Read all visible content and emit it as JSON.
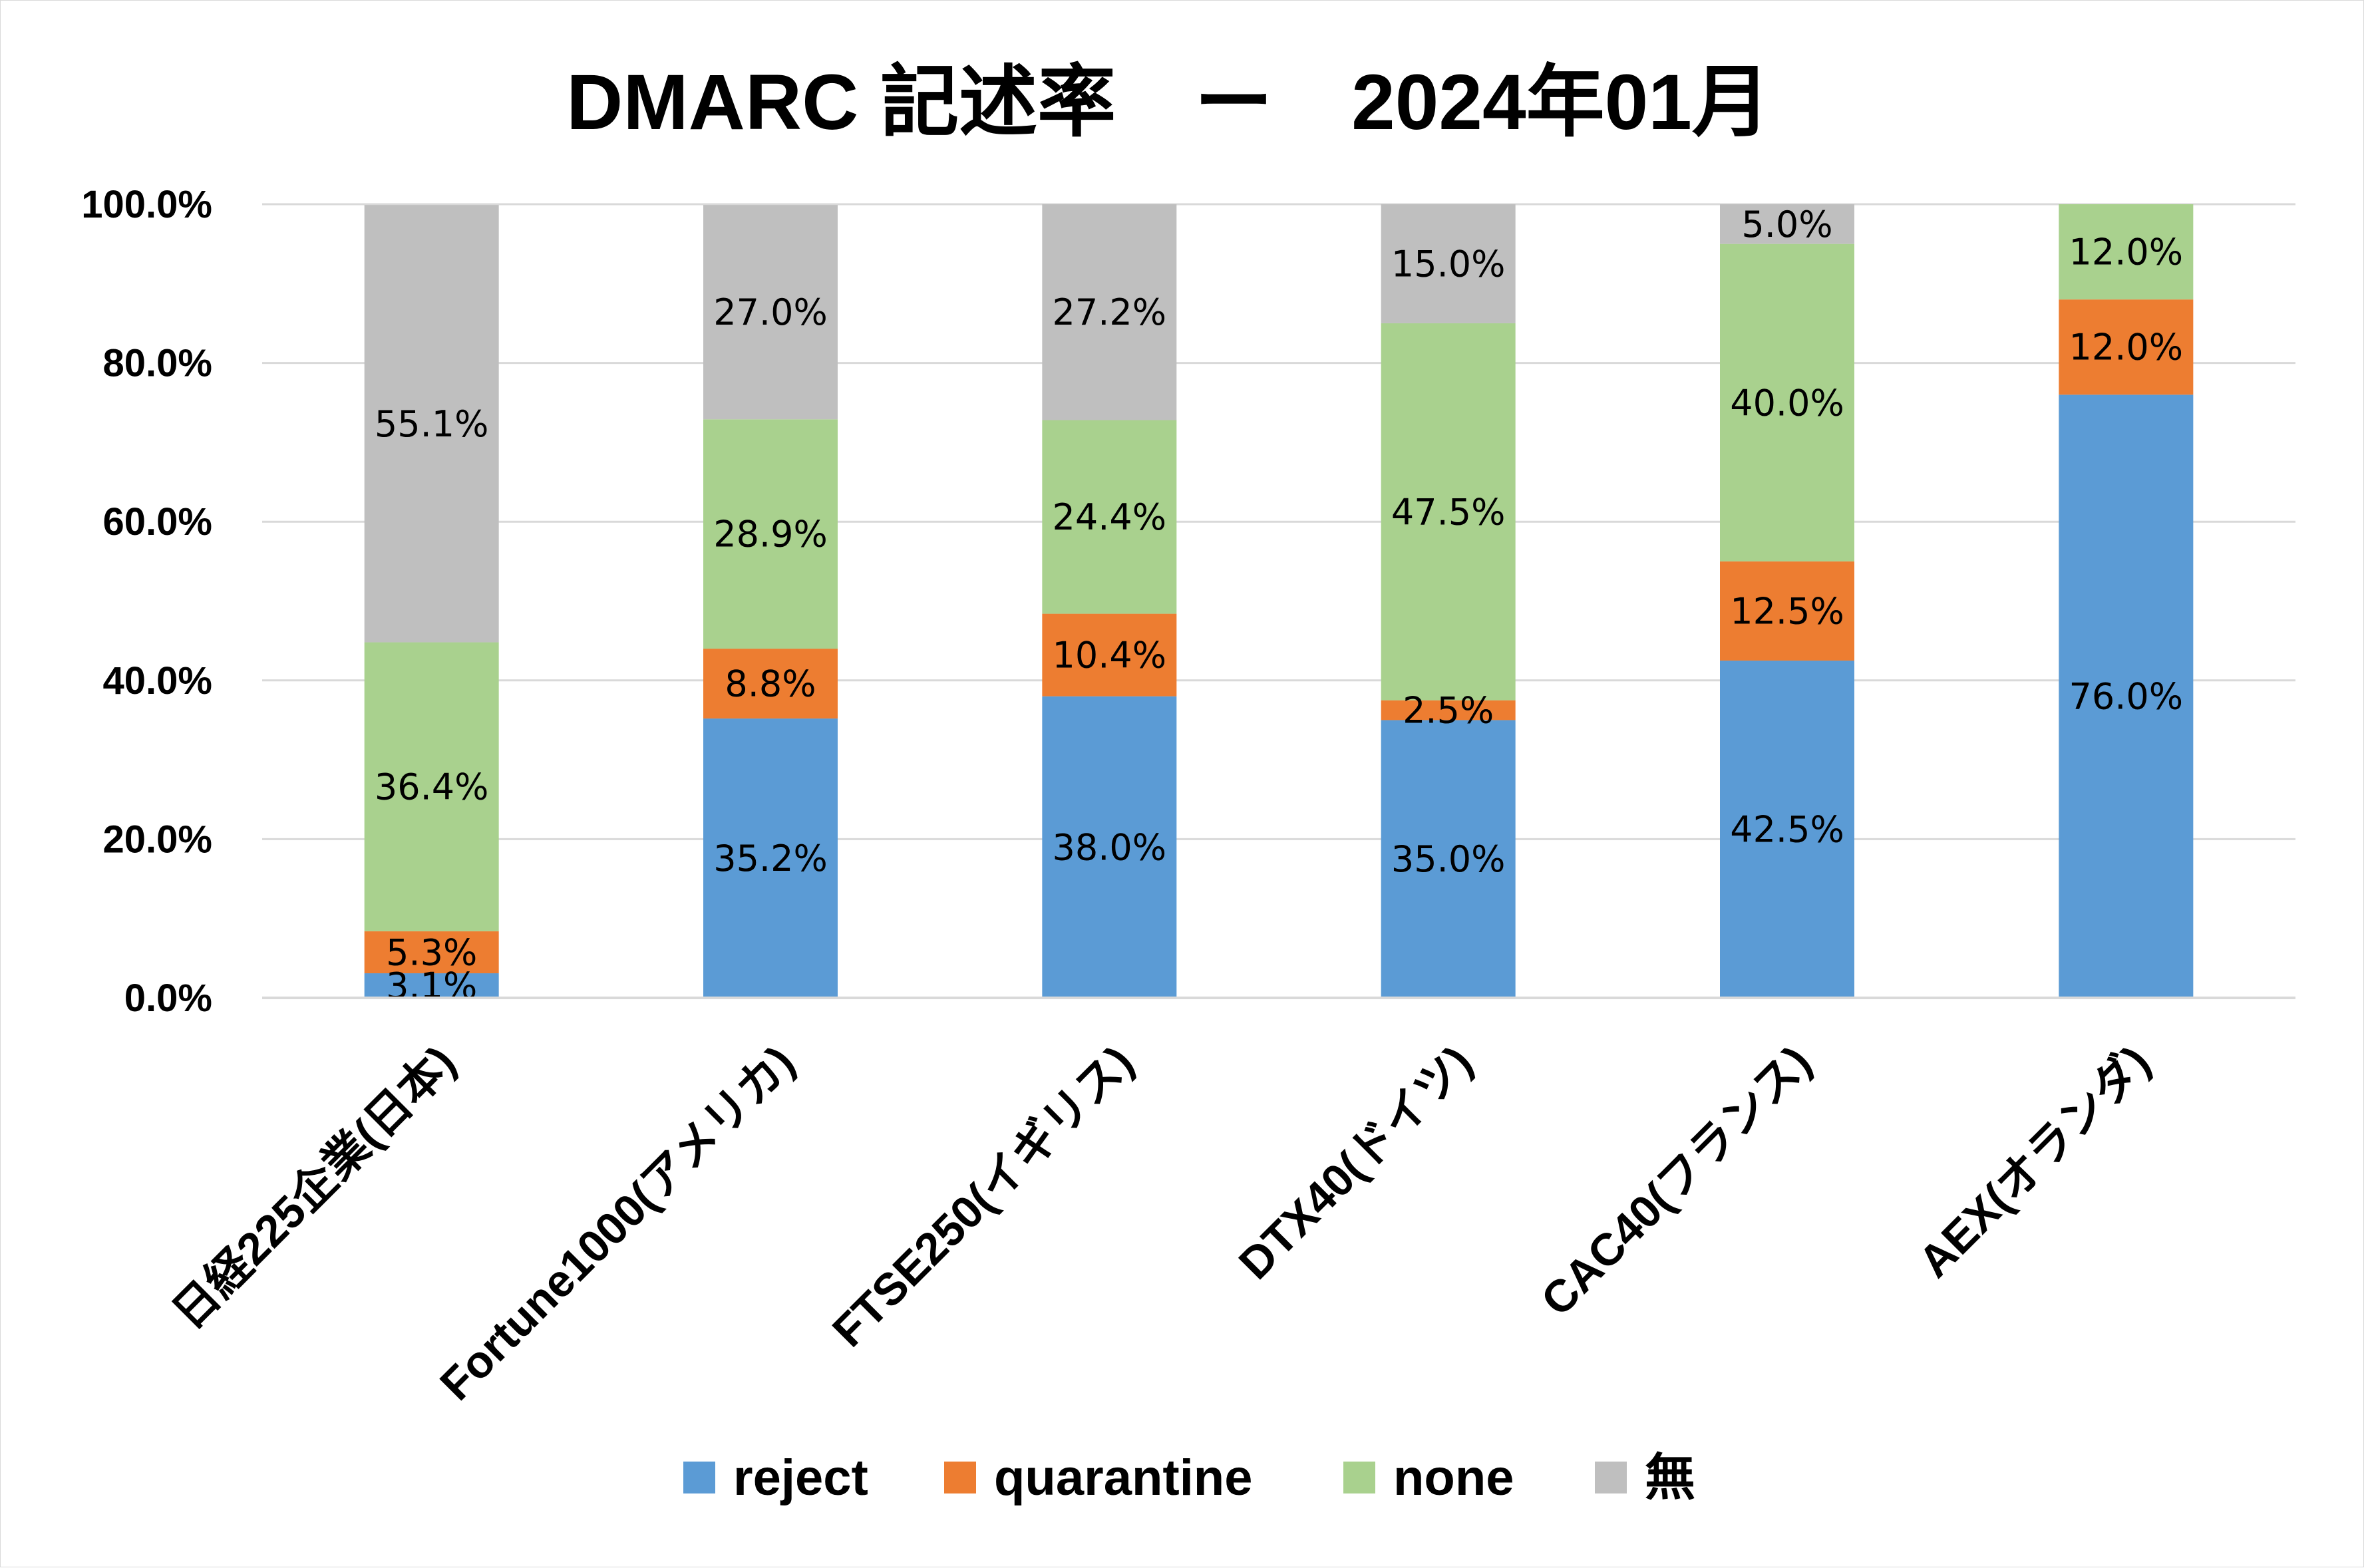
{
  "chart_data": {
    "type": "bar",
    "stacked": true,
    "title": "DMARC 記述率　ー　2024年01月",
    "xlabel": "",
    "ylabel": "",
    "ylim": [
      0,
      100
    ],
    "y_ticks": [
      "0.0%",
      "20.0%",
      "40.0%",
      "60.0%",
      "80.0%",
      "100.0%"
    ],
    "y_tick_values": [
      0,
      20,
      40,
      60,
      80,
      100
    ],
    "grid": true,
    "legend_position": "bottom",
    "categories": [
      "日経225企業(日本)",
      "Fortune1000(アメリカ)",
      "FTSE250(イギリス)",
      "DTX40(ドイツ)",
      "CAC40(フランス)",
      "AEX(オランダ)"
    ],
    "series": [
      {
        "name": "reject",
        "color": "#5B9BD5",
        "values": [
          3.1,
          35.2,
          38.0,
          35.0,
          42.5,
          76.0
        ],
        "labels": [
          "3.1%",
          "35.2%",
          "38.0%",
          "35.0%",
          "42.5%",
          "76.0%"
        ]
      },
      {
        "name": "quarantine",
        "color": "#ED7D31",
        "values": [
          5.3,
          8.8,
          10.4,
          2.5,
          12.5,
          12.0
        ],
        "labels": [
          "5.3%",
          "8.8%",
          "10.4%",
          "2.5%",
          "12.5%",
          "12.0%"
        ]
      },
      {
        "name": "none",
        "color": "#A9D18E",
        "values": [
          36.4,
          28.9,
          24.4,
          47.5,
          40.0,
          12.0
        ],
        "labels": [
          "36.4%",
          "28.9%",
          "24.4%",
          "47.5%",
          "40.0%",
          "12.0%"
        ]
      },
      {
        "name": "無",
        "color": "#BFBFBF",
        "values": [
          55.1,
          27.0,
          27.2,
          15.0,
          5.0,
          0
        ],
        "labels": [
          "55.1%",
          "27.0%",
          "27.2%",
          "15.0%",
          "5.0%",
          ""
        ]
      }
    ]
  }
}
